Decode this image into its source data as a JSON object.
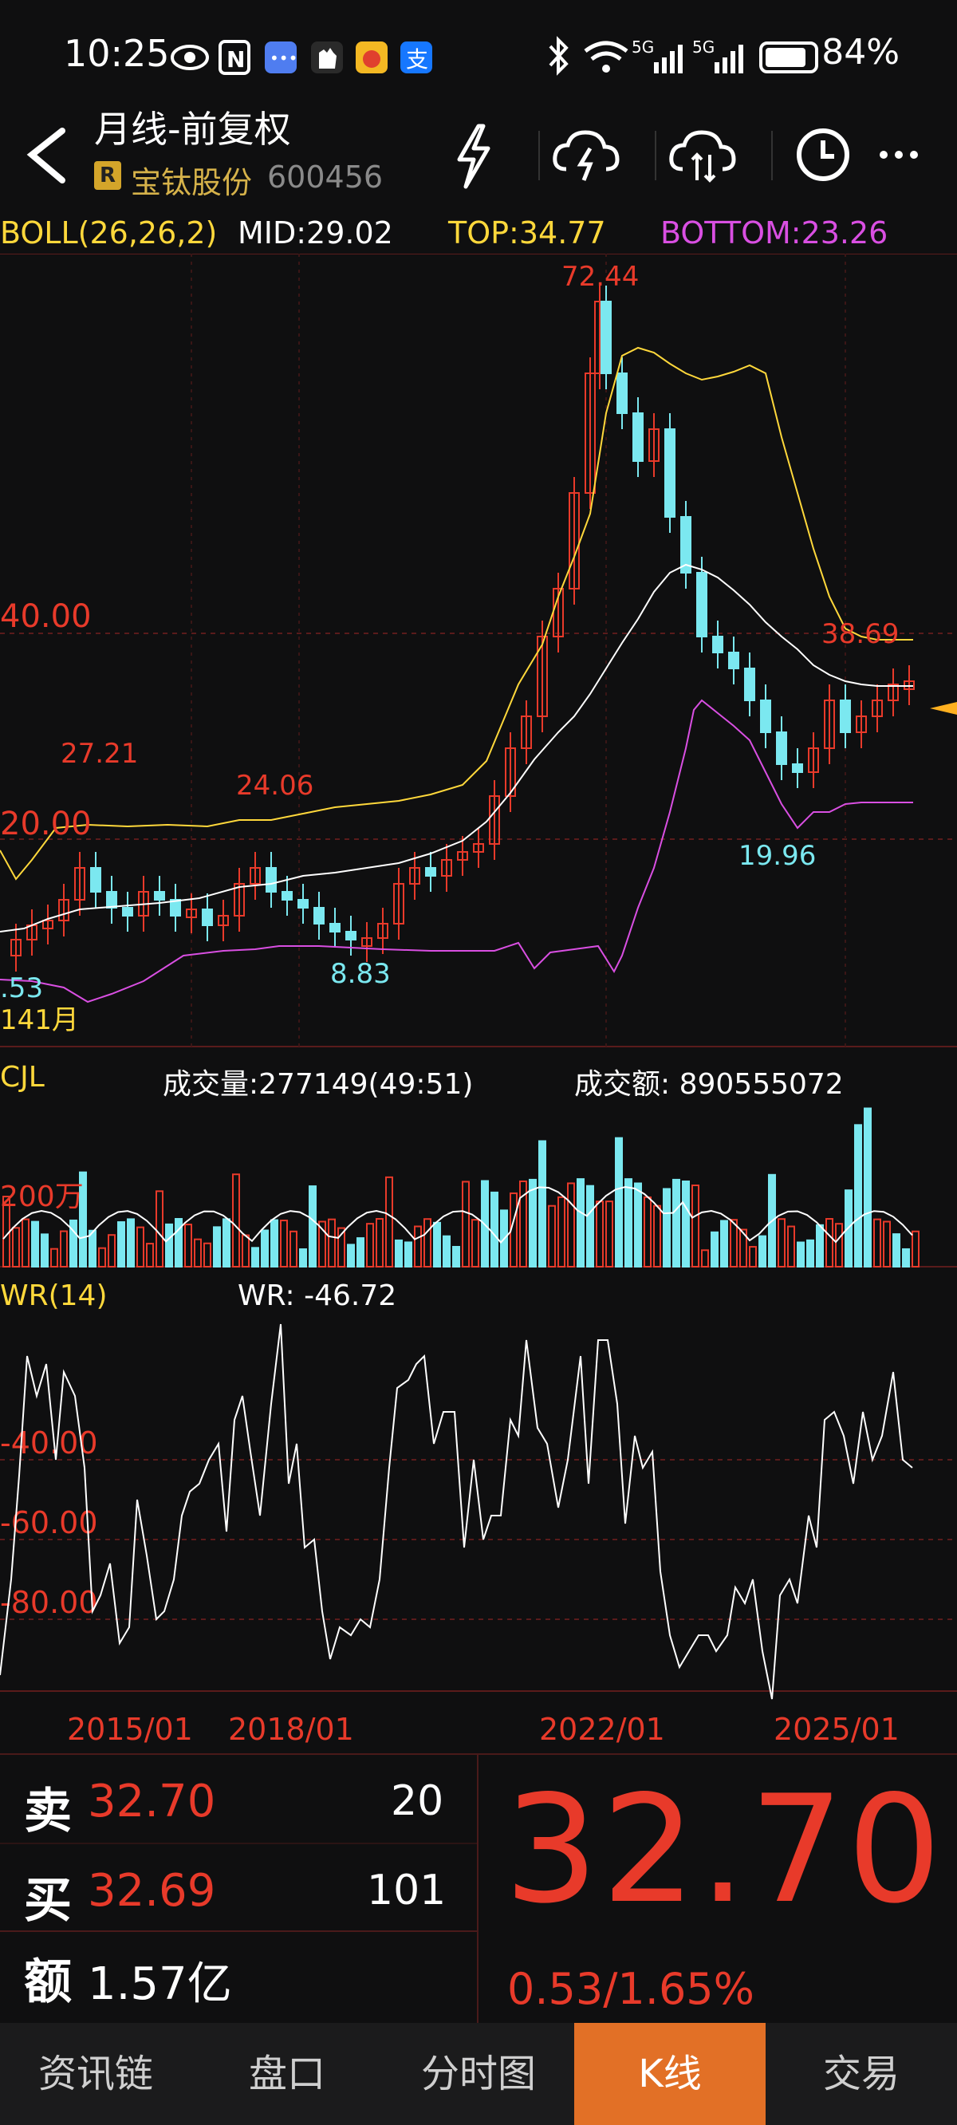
{
  "status_bar": {
    "time": "10:25",
    "battery": "84%",
    "net1": "5G",
    "net2": "5G"
  },
  "header": {
    "title": "月线-前复权",
    "badge": "R",
    "stock_name": "宝钛股份",
    "stock_code": "600456"
  },
  "boll": {
    "label": "BOLL(26,26,2)",
    "mid": "MID:29.02",
    "top": "TOP:34.77",
    "bottom": "BOTTOM:23.26"
  },
  "price_chart": {
    "y_labels": [
      "40.00",
      "20.00"
    ],
    "annotations": {
      "high": "72.44",
      "peak1": "27.21",
      "peak2": "24.06",
      "low1": "8.83",
      "low2": "19.96",
      "recent_high": "38.69",
      "left_low": ".53",
      "months": "141月"
    }
  },
  "volume": {
    "label": "CJL",
    "volume_text": "成交量:277149(49:51)",
    "amount_text": "成交额: 890555072",
    "y_label": "200万"
  },
  "wr": {
    "label": "WR(14)",
    "value": "WR: -46.72",
    "y_labels": [
      "-40.00",
      "-60.00",
      "-80.00"
    ]
  },
  "x_axis": [
    "2015/01",
    "2018/01",
    "2022/01",
    "2025/01"
  ],
  "quote": {
    "sell_label": "卖",
    "sell_price": "32.70",
    "sell_vol": "20",
    "buy_label": "买",
    "buy_price": "32.69",
    "buy_vol": "101",
    "amount_label": "额",
    "amount": "1.57亿",
    "last_price": "32.70",
    "change": "0.53/1.65%"
  },
  "tabs": [
    "资讯链",
    "盘口",
    "分时图",
    "K线",
    "交易"
  ],
  "active_tab": "K线",
  "colors": {
    "up": "#e83a2a",
    "down": "#7be8f0",
    "accent": "#e27026",
    "boll_top": "#ffd83b",
    "boll_bottom": "#d94fe2"
  }
}
